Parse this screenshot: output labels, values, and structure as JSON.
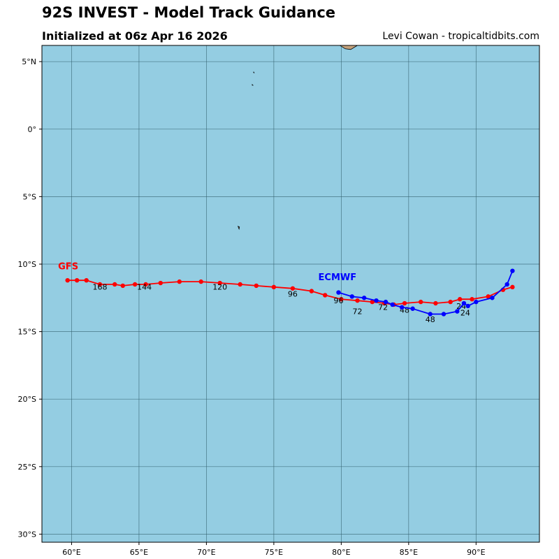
{
  "header": {
    "title": "92S INVEST - Model Track Guidance",
    "subtitle": "Initialized at 06z Apr 16 2026",
    "credit": "Levi Cowan - tropicaltidbits.com"
  },
  "colors": {
    "ocean": "#94cde2",
    "land": "#c4a27c",
    "grid": "#33616f",
    "gfs": "#ff0000",
    "ecmwf": "#0000ff"
  },
  "chart_data": {
    "type": "track-map",
    "lon_range": [
      57.8,
      94.7
    ],
    "lat_range": [
      -30.6,
      6.2
    ],
    "lon_ticks": [
      {
        "value": 60,
        "label": "60°E"
      },
      {
        "value": 65,
        "label": "65°E"
      },
      {
        "value": 70,
        "label": "70°E"
      },
      {
        "value": 75,
        "label": "75°E"
      },
      {
        "value": 80,
        "label": "80°E"
      },
      {
        "value": 85,
        "label": "85°E"
      },
      {
        "value": 90,
        "label": "90°E"
      }
    ],
    "lat_ticks": [
      {
        "value": 5,
        "label": "5°N"
      },
      {
        "value": 0,
        "label": "0°"
      },
      {
        "value": -5,
        "label": "5°S"
      },
      {
        "value": -10,
        "label": "10°S"
      },
      {
        "value": -15,
        "label": "15°S"
      },
      {
        "value": -20,
        "label": "20°S"
      },
      {
        "value": -25,
        "label": "25°S"
      },
      {
        "value": -30,
        "label": "30°S"
      }
    ],
    "land": [
      {
        "name": "sri-lanka-tip",
        "points": [
          [
            79.9,
            6.2
          ],
          [
            80.3,
            5.95
          ],
          [
            80.7,
            5.9
          ],
          [
            81.2,
            6.2
          ]
        ]
      },
      {
        "name": "maldives-islet-1",
        "points": [
          [
            73.5,
            4.25
          ],
          [
            73.55,
            4.15
          ],
          [
            73.5,
            4.2
          ]
        ]
      },
      {
        "name": "maldives-islet-2",
        "points": [
          [
            73.4,
            3.3
          ],
          [
            73.45,
            3.25
          ],
          [
            73.4,
            3.25
          ]
        ]
      },
      {
        "name": "diego-garcia",
        "points": [
          [
            72.35,
            -7.2
          ],
          [
            72.45,
            -7.25
          ],
          [
            72.42,
            -7.4
          ],
          [
            72.38,
            -7.3
          ]
        ]
      }
    ],
    "series": [
      {
        "name": "GFS",
        "label": "GFS",
        "label_pos": [
          59.0,
          -10.4
        ],
        "points": [
          [
            92.7,
            -11.7
          ],
          [
            92.0,
            -11.9
          ],
          [
            90.9,
            -12.4
          ],
          [
            89.7,
            -12.6
          ],
          [
            88.8,
            -12.6
          ],
          [
            88.1,
            -12.8
          ],
          [
            87.0,
            -12.9
          ],
          [
            85.9,
            -12.8
          ],
          [
            84.7,
            -12.9
          ],
          [
            83.9,
            -13.0
          ],
          [
            83.2,
            -12.9
          ],
          [
            82.3,
            -12.8
          ],
          [
            81.2,
            -12.7
          ],
          [
            80.0,
            -12.6
          ],
          [
            78.8,
            -12.3
          ],
          [
            77.8,
            -12.0
          ],
          [
            76.4,
            -11.8
          ],
          [
            75.0,
            -11.7
          ],
          [
            73.7,
            -11.6
          ],
          [
            72.5,
            -11.5
          ],
          [
            71.0,
            -11.4
          ],
          [
            69.6,
            -11.3
          ],
          [
            68.0,
            -11.3
          ],
          [
            66.6,
            -11.4
          ],
          [
            65.5,
            -11.5
          ],
          [
            64.7,
            -11.5
          ],
          [
            63.8,
            -11.6
          ],
          [
            63.2,
            -11.5
          ],
          [
            62.1,
            -11.5
          ],
          [
            61.1,
            -11.2
          ],
          [
            60.4,
            -11.2
          ],
          [
            59.7,
            -11.2
          ]
        ],
        "hour_labels": [
          {
            "text": "24",
            "pos": [
              88.9,
              -13.3
            ]
          },
          {
            "text": "48",
            "pos": [
              84.7,
              -13.6
            ]
          },
          {
            "text": "72",
            "pos": [
              83.1,
              -13.4
            ]
          },
          {
            "text": "96",
            "pos": [
              76.4,
              -12.4
            ]
          },
          {
            "text": "120",
            "pos": [
              71.0,
              -11.9
            ]
          },
          {
            "text": "144",
            "pos": [
              65.4,
              -11.9
            ]
          },
          {
            "text": "168",
            "pos": [
              62.1,
              -11.9
            ]
          }
        ]
      },
      {
        "name": "ECMWF",
        "label": "ECMWF",
        "label_pos": [
          78.3,
          -11.2
        ],
        "points": [
          [
            92.7,
            -10.5
          ],
          [
            92.3,
            -11.5
          ],
          [
            91.2,
            -12.5
          ],
          [
            90.0,
            -12.8
          ],
          [
            89.4,
            -13.1
          ],
          [
            89.1,
            -12.9
          ],
          [
            88.6,
            -13.5
          ],
          [
            87.6,
            -13.7
          ],
          [
            86.6,
            -13.7
          ],
          [
            85.3,
            -13.3
          ],
          [
            84.5,
            -13.2
          ],
          [
            83.8,
            -13.0
          ],
          [
            83.3,
            -12.8
          ],
          [
            82.6,
            -12.7
          ],
          [
            81.7,
            -12.5
          ],
          [
            80.8,
            -12.4
          ],
          [
            79.8,
            -12.1
          ]
        ],
        "hour_labels": [
          {
            "text": "24",
            "pos": [
              89.2,
              -13.8
            ]
          },
          {
            "text": "48",
            "pos": [
              86.6,
              -14.3
            ]
          },
          {
            "text": "72",
            "pos": [
              81.2,
              -13.7
            ]
          },
          {
            "text": "96",
            "pos": [
              79.8,
              -12.9
            ]
          }
        ]
      }
    ]
  }
}
